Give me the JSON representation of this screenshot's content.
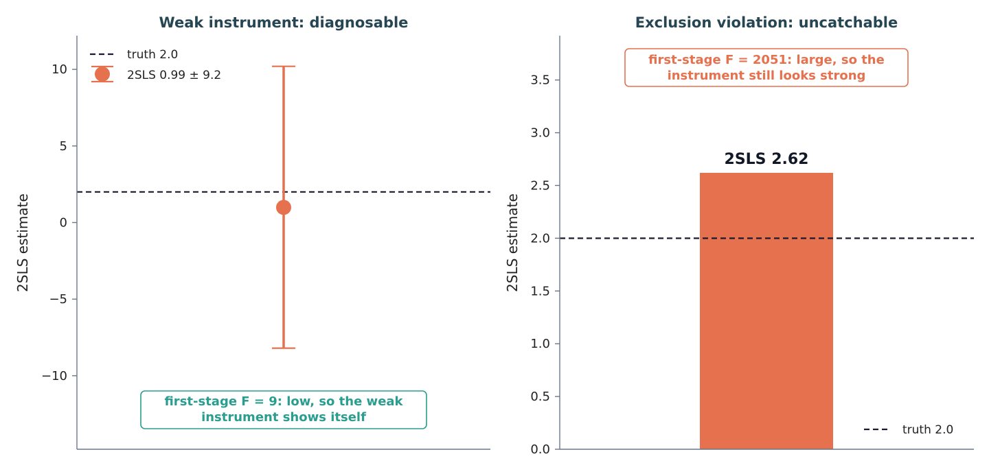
{
  "colors": {
    "accent": "#e5714f",
    "teal": "#2a9d8f",
    "title": "#264653",
    "axis": "#6b7785",
    "text": "#222222",
    "truth": "#1a1a2e"
  },
  "chart_data": [
    {
      "type": "errorbar",
      "title": "Weak instrument: diagnosable",
      "ylabel": "2SLS estimate",
      "xlabel": "",
      "ylim": [
        -14.8,
        12.2
      ],
      "yticks": [
        10,
        5,
        0,
        -5,
        -10
      ],
      "ytick_labels": [
        "10",
        "5",
        "0",
        "−5",
        "−10"
      ],
      "truth": 2.0,
      "estimate": 0.99,
      "error_low": -8.2,
      "error_high": 10.2,
      "legend": {
        "position": "upper-left",
        "truth_label": "truth 2.0",
        "estimate_label": "2SLS 0.99 ± 9.2"
      },
      "annotation": {
        "line1": "first-stage F = 9: low, so the weak",
        "line2": "instrument shows itself"
      }
    },
    {
      "type": "bar",
      "title": "Exclusion violation: uncatchable",
      "ylabel": "2SLS estimate",
      "xlabel": "",
      "ylim": [
        0,
        3.92
      ],
      "yticks": [
        0.0,
        0.5,
        1.0,
        1.5,
        2.0,
        2.5,
        3.0,
        3.5
      ],
      "ytick_labels": [
        "0.0",
        "0.5",
        "1.0",
        "1.5",
        "2.0",
        "2.5",
        "3.0",
        "3.5"
      ],
      "truth": 2.0,
      "value": 2.62,
      "bar_label": "2SLS 2.62",
      "legend": {
        "position": "lower-right",
        "truth_label": "truth 2.0"
      },
      "annotation": {
        "line1": "first-stage F = 2051: large, so the",
        "line2": "instrument still looks strong"
      }
    }
  ]
}
